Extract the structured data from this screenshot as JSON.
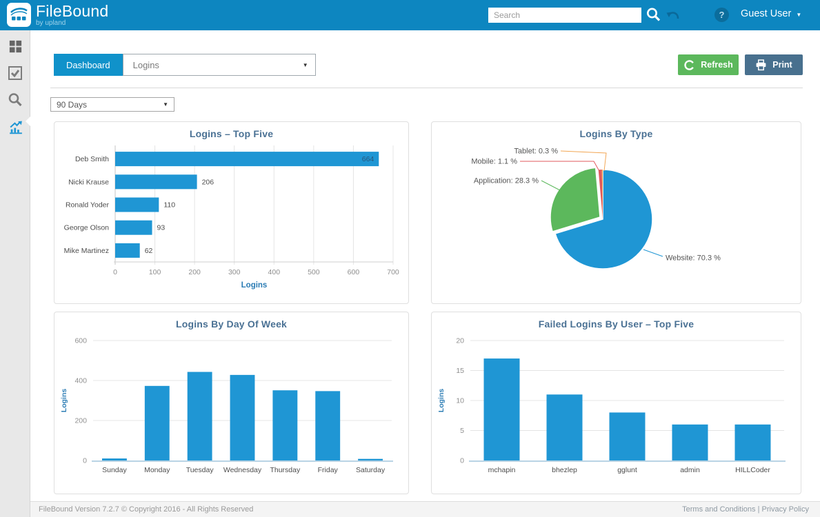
{
  "topbar": {
    "logo_title": "FileBound",
    "logo_subtitle": "by upland",
    "search_placeholder": "Search",
    "user_label": "Guest User",
    "icons": [
      "search-icon",
      "undo-icon",
      "help-icon",
      "caret-down-icon"
    ]
  },
  "sidebar": {
    "items": [
      {
        "icon": "apps-grid-icon",
        "active": false
      },
      {
        "icon": "tasks-checkbox-icon",
        "active": false
      },
      {
        "icon": "search-icon",
        "active": false
      },
      {
        "icon": "reports-chart-icon",
        "active": true
      }
    ]
  },
  "toolbar": {
    "tab_label": "Dashboard",
    "dashboard_select_value": "Logins",
    "refresh_label": "Refresh",
    "print_label": "Print",
    "range_select_value": "90 Days"
  },
  "colors": {
    "topbar_blue": "#0d86c0",
    "accent_blue": "#1092ca",
    "bar_blue": "#1f96d4",
    "pie_green": "#5cb85c",
    "pie_red": "#e2595d",
    "pie_orange": "#f2a654",
    "refresh_green": "#5cb85c",
    "print_slate": "#48708e",
    "title_color": "#4a7194",
    "axis_label_blue": "#2b7cb4"
  },
  "chart_data": [
    {
      "type": "bar",
      "orientation": "horizontal",
      "title": "Logins – Top Five",
      "categories": [
        "Deb Smith",
        "Nicki Krause",
        "Ronald Yoder",
        "George Olson",
        "Mike Martinez"
      ],
      "values": [
        664,
        206,
        110,
        93,
        62
      ],
      "xlabel": "Logins",
      "xlim": [
        0,
        700
      ],
      "xticks": [
        0,
        100,
        200,
        300,
        400,
        500,
        600,
        700
      ],
      "grid": true,
      "bar_color": "#1f96d4"
    },
    {
      "type": "pie",
      "title": "Logins By Type",
      "slices": [
        {
          "name": "Website",
          "pct": 70.3,
          "label": "Website: 70.3 %",
          "color": "#1f96d4",
          "exploded": false
        },
        {
          "name": "Application",
          "pct": 28.3,
          "label": "Application: 28.3 %",
          "color": "#5cb85c",
          "exploded": true
        },
        {
          "name": "Mobile",
          "pct": 1.1,
          "label": "Mobile: 1.1 %",
          "color": "#e2595d",
          "exploded": false
        },
        {
          "name": "Tablet",
          "pct": 0.3,
          "label": "Tablet: 0.3 %",
          "color": "#f2a654",
          "exploded": false
        }
      ],
      "start_angle": "top",
      "direction": "clockwise"
    },
    {
      "type": "bar",
      "orientation": "vertical",
      "title": "Logins By Day Of Week",
      "categories": [
        "Sunday",
        "Monday",
        "Tuesday",
        "Wednesday",
        "Thursday",
        "Friday",
        "Saturday"
      ],
      "values": [
        10,
        373,
        443,
        428,
        351,
        347,
        8
      ],
      "ylabel": "Logins",
      "ylim": [
        0,
        600
      ],
      "yticks": [
        0,
        200,
        400,
        600
      ],
      "grid": true,
      "bar_color": "#1f96d4"
    },
    {
      "type": "bar",
      "orientation": "vertical",
      "title": "Failed Logins By User – Top Five",
      "categories": [
        "mchapin",
        "bhezlep",
        "gglunt",
        "admin",
        "HILLCoder"
      ],
      "values": [
        17,
        11,
        8,
        6,
        6
      ],
      "ylabel": "Logins",
      "ylim": [
        0,
        20
      ],
      "yticks": [
        0,
        5,
        10,
        15,
        20
      ],
      "grid": true,
      "bar_color": "#1f96d4"
    }
  ],
  "footer": {
    "version_text": "FileBound Version 7.2.7 © Copyright 2016 - All Rights Reserved",
    "links": [
      "Terms and Conditions",
      "Privacy Policy"
    ],
    "separator": "|"
  }
}
